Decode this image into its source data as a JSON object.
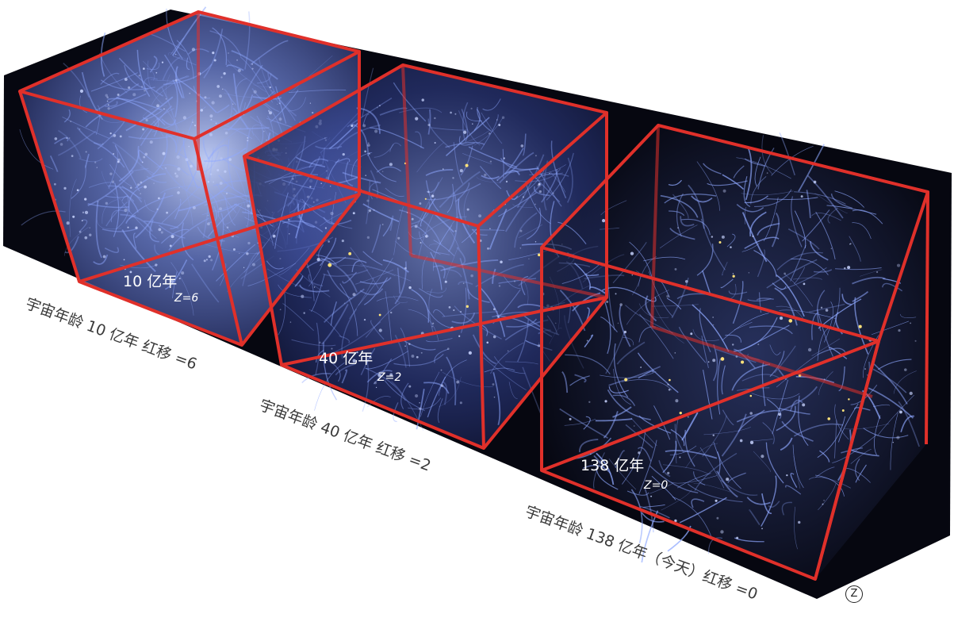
{
  "panels": [
    {
      "age_label": "10 亿年",
      "z_label": "Z=6",
      "caption": "宇宙年龄 10 亿年  红移 =6"
    },
    {
      "age_label": "40 亿年",
      "z_label": "Z=2",
      "caption": "宇宙年龄 40 亿年  红移 =2"
    },
    {
      "age_label": "138 亿年",
      "z_label": "Z=0",
      "caption": "宇宙年龄 138 亿年（今天）红移 =0"
    }
  ],
  "badge": "Z",
  "colors": {
    "box_edge": "#e0302a",
    "space": "#05060f",
    "filament": "#8fa8ff",
    "glow": "#c8d4ff",
    "galaxy": "#ffe27a"
  }
}
